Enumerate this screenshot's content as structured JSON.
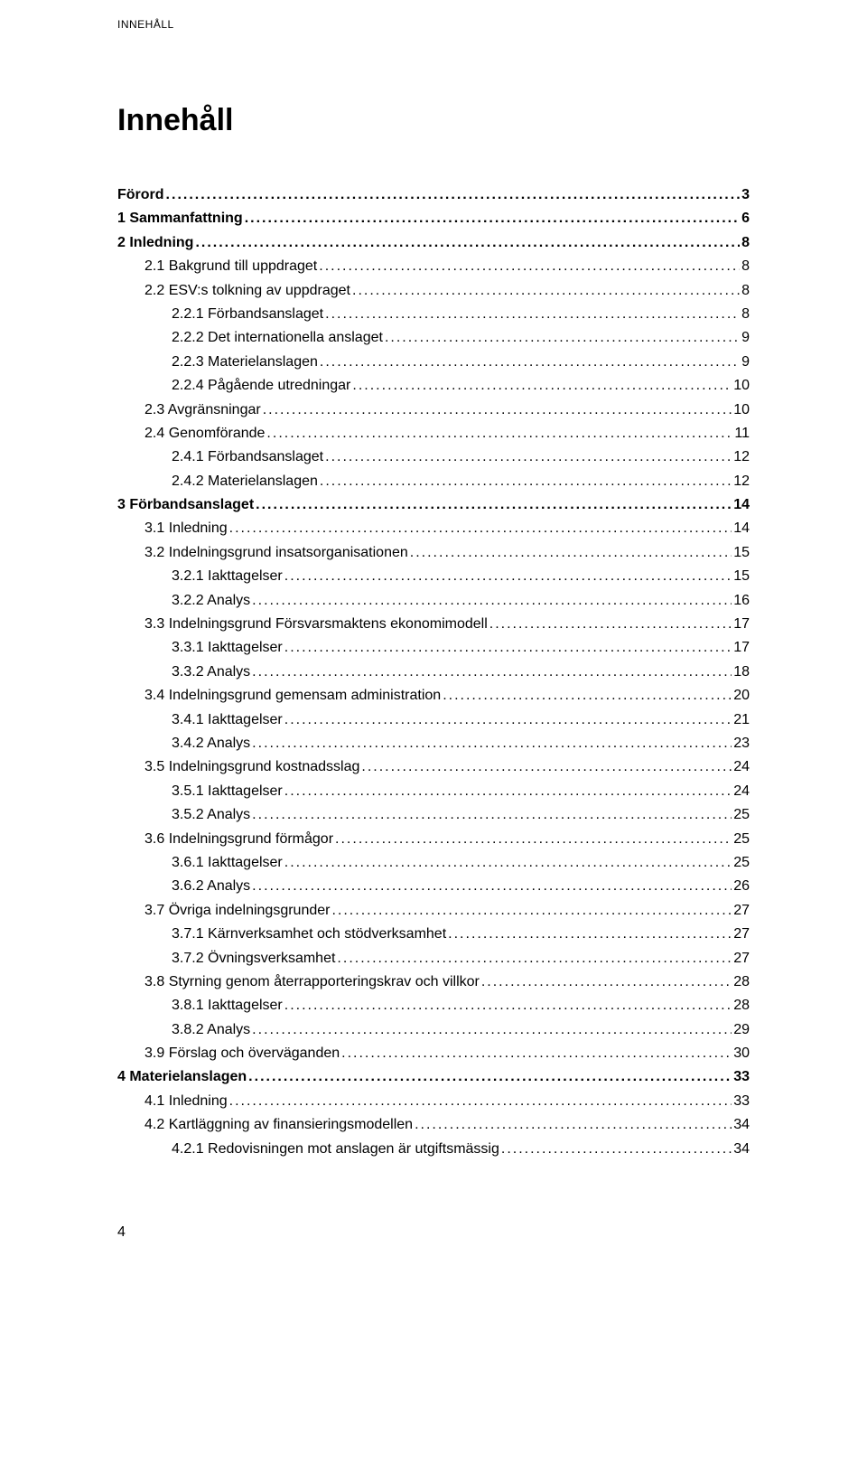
{
  "running_header": "INNEHÅLL",
  "title": "Innehåll",
  "page_number": "4",
  "toc": [
    {
      "level": 0,
      "label": "Förord",
      "page": "3"
    },
    {
      "level": 0,
      "label": "1  Sammanfattning",
      "page": "6"
    },
    {
      "level": 0,
      "label": "2  Inledning",
      "page": "8"
    },
    {
      "level": 1,
      "label": "2.1 Bakgrund till uppdraget",
      "page": "8"
    },
    {
      "level": 1,
      "label": "2.2 ESV:s tolkning av uppdraget",
      "page": "8"
    },
    {
      "level": 2,
      "label": "2.2.1   Förbandsanslaget",
      "page": "8"
    },
    {
      "level": 2,
      "label": "2.2.2   Det internationella anslaget",
      "page": "9"
    },
    {
      "level": 2,
      "label": "2.2.3   Materielanslagen",
      "page": "9"
    },
    {
      "level": 2,
      "label": "2.2.4   Pågående utredningar",
      "page": "10"
    },
    {
      "level": 1,
      "label": "2.3 Avgränsningar",
      "page": "10"
    },
    {
      "level": 1,
      "label": "2.4 Genomförande",
      "page": "11"
    },
    {
      "level": 2,
      "label": "2.4.1   Förbandsanslaget",
      "page": "12"
    },
    {
      "level": 2,
      "label": "2.4.2   Materielanslagen",
      "page": "12"
    },
    {
      "level": 0,
      "label": "3  Förbandsanslaget",
      "page": "14"
    },
    {
      "level": 1,
      "label": "3.1 Inledning",
      "page": "14"
    },
    {
      "level": 1,
      "label": "3.2 Indelningsgrund insatsorganisationen",
      "page": "15"
    },
    {
      "level": 2,
      "label": "3.2.1   Iakttagelser",
      "page": "15"
    },
    {
      "level": 2,
      "label": "3.2.2   Analys",
      "page": "16"
    },
    {
      "level": 1,
      "label": "3.3 Indelningsgrund Försvarsmaktens ekonomimodell",
      "page": "17"
    },
    {
      "level": 2,
      "label": "3.3.1   Iakttagelser",
      "page": "17"
    },
    {
      "level": 2,
      "label": "3.3.2   Analys",
      "page": "18"
    },
    {
      "level": 1,
      "label": "3.4 Indelningsgrund gemensam administration",
      "page": "20"
    },
    {
      "level": 2,
      "label": "3.4.1   Iakttagelser",
      "page": "21"
    },
    {
      "level": 2,
      "label": "3.4.2   Analys",
      "page": "23"
    },
    {
      "level": 1,
      "label": "3.5 Indelningsgrund kostnadsslag",
      "page": "24"
    },
    {
      "level": 2,
      "label": "3.5.1   Iakttagelser",
      "page": "24"
    },
    {
      "level": 2,
      "label": "3.5.2   Analys",
      "page": "25"
    },
    {
      "level": 1,
      "label": "3.6 Indelningsgrund förmågor",
      "page": "25"
    },
    {
      "level": 2,
      "label": "3.6.1   Iakttagelser",
      "page": "25"
    },
    {
      "level": 2,
      "label": "3.6.2   Analys",
      "page": "26"
    },
    {
      "level": 1,
      "label": "3.7 Övriga indelningsgrunder",
      "page": "27"
    },
    {
      "level": 2,
      "label": "3.7.1   Kärnverksamhet och stödverksamhet",
      "page": "27"
    },
    {
      "level": 2,
      "label": "3.7.2   Övningsverksamhet",
      "page": "27"
    },
    {
      "level": 1,
      "label": "3.8 Styrning genom återrapporteringskrav och villkor",
      "page": "28"
    },
    {
      "level": 2,
      "label": "3.8.1   Iakttagelser",
      "page": "28"
    },
    {
      "level": 2,
      "label": "3.8.2   Analys",
      "page": "29"
    },
    {
      "level": 1,
      "label": "3.9 Förslag och överväganden",
      "page": "30"
    },
    {
      "level": 0,
      "label": "4  Materielanslagen",
      "page": "33"
    },
    {
      "level": 1,
      "label": "4.1 Inledning",
      "page": "33"
    },
    {
      "level": 1,
      "label": "4.2 Kartläggning av finansieringsmodellen",
      "page": "34"
    },
    {
      "level": 2,
      "label": "4.2.1   Redovisningen mot anslagen är utgiftsmässig",
      "page": "34"
    }
  ]
}
